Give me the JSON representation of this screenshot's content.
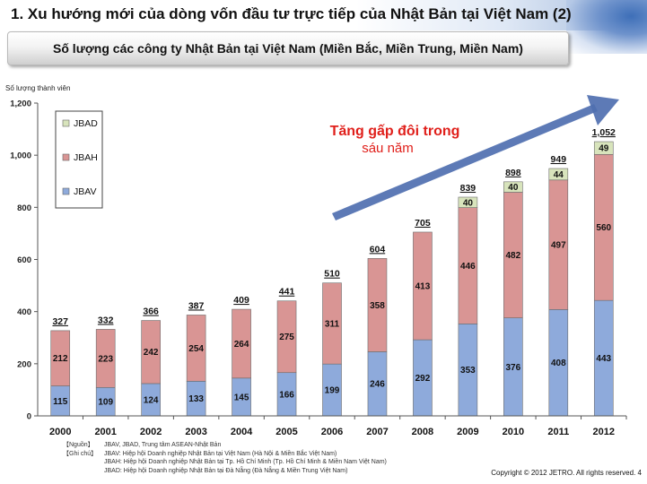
{
  "header": {
    "title": "1. Xu hướng mới của dòng vốn đầu tư trực tiếp của Nhật Bản tại Việt Nam (2)",
    "subtitle": "Số lượng các công ty Nhật Bản tại Việt Nam (Miền Bắc, Miền Trung, Miền Nam)"
  },
  "chart_data": {
    "type": "bar",
    "stacked": true,
    "ylabel": "Số lượng thành viên",
    "ylim": [
      0,
      1200
    ],
    "yticks": [
      "0",
      "200",
      "400",
      "600",
      "800",
      "1,000",
      "1,200"
    ],
    "ytick_values": [
      0,
      200,
      400,
      600,
      800,
      1000,
      1200
    ],
    "categories": [
      "2000",
      "2001",
      "2002",
      "2003",
      "2004",
      "2005",
      "2006",
      "2007",
      "2008",
      "2009",
      "2010",
      "2011",
      "2012"
    ],
    "series": [
      {
        "name": "JBAV",
        "color": "#8eaadb",
        "values": [
          115,
          109,
          124,
          133,
          145,
          166,
          199,
          246,
          292,
          353,
          376,
          408,
          443
        ]
      },
      {
        "name": "JBAH",
        "color": "#d99594",
        "values": [
          212,
          223,
          242,
          254,
          264,
          275,
          311,
          358,
          413,
          446,
          482,
          497,
          560
        ]
      },
      {
        "name": "JBAD",
        "color": "#d8e4bc",
        "values": [
          null,
          null,
          null,
          null,
          null,
          null,
          null,
          null,
          null,
          40,
          40,
          44,
          49
        ]
      }
    ],
    "totals": [
      "327",
      "332",
      "366",
      "387",
      "409",
      "441",
      "510",
      "604",
      "705",
      "839",
      "898",
      "949",
      "1,052"
    ],
    "legend_position": "top-left",
    "grid": false,
    "annotation": {
      "line1": "Tăng gấp đôi trong",
      "line2": "sáu năm",
      "color": "#e0201b"
    },
    "arrow_color": "#4f6fb0"
  },
  "notes": [
    {
      "tag": "【Nguồn】",
      "text": "JBAV, JBAD, Trung tâm ASEAN-Nhật Bản"
    },
    {
      "tag": "【Ghi chú】",
      "text": "JBAV: Hiệp hội Doanh nghiệp Nhật Bản tại Việt Nam (Hà Nội & Miền Bắc Việt Nam)"
    },
    {
      "tag": "",
      "text": "JBAH: Hiệp hội Doanh nghiệp Nhật Bản tại Tp. Hồ Chí Minh (Tp. Hồ Chí Minh & Miền Nam Việt Nam)"
    },
    {
      "tag": "",
      "text": "JBAD: Hiệp hội Doanh nghiệp Nhật Bản tại Đà Nẵng (Đà Nẵng & Miền Trung Việt Nam)"
    }
  ],
  "footer": {
    "copyright": "Copyright © 2012 JETRO. All rights reserved.",
    "page_number": "4"
  }
}
